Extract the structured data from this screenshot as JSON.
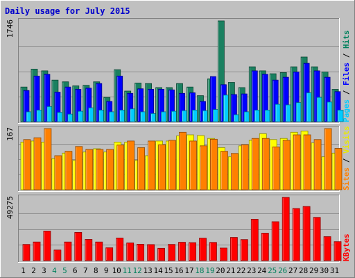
{
  "chart_data": {
    "type": "bar",
    "title": "Daily usage for July 2015",
    "categories": [
      "1",
      "2",
      "3",
      "4",
      "5",
      "6",
      "7",
      "8",
      "9",
      "10",
      "11",
      "12",
      "13",
      "14",
      "15",
      "16",
      "17",
      "18",
      "19",
      "20",
      "21",
      "22",
      "23",
      "24",
      "25",
      "26",
      "27",
      "28",
      "29",
      "30",
      "31"
    ],
    "weekend_days": [
      "4",
      "5",
      "11",
      "12",
      "18",
      "19",
      "25",
      "26"
    ],
    "grid": true,
    "panels": [
      {
        "id": "hits-files-pages",
        "ymax": 1746,
        "ymax_label": "1746",
        "axis_label": [
          "Pages",
          " / ",
          "Files",
          " / ",
          "Hits"
        ],
        "axis_label_colors": [
          "#00ccff",
          "#000000",
          "#0000ff",
          "#000000",
          "#00805c"
        ],
        "series": [
          {
            "name": "Hits",
            "color": "#1a8060",
            "values": [
              600,
              910,
              880,
              720,
              690,
              620,
              630,
              690,
              420,
              900,
              530,
              670,
              660,
              590,
              590,
              660,
              600,
              450,
              740,
              1746,
              680,
              590,
              950,
              880,
              830,
              850,
              950,
              1120,
              950,
              860,
              560
            ]
          },
          {
            "name": "Files",
            "color": "#0000ff",
            "values": [
              540,
              790,
              820,
              510,
              600,
              560,
              580,
              660,
              350,
              790,
              490,
              570,
              560,
              560,
              550,
              490,
              500,
              350,
              780,
              640,
              470,
              480,
              880,
              820,
              720,
              770,
              860,
              1010,
              880,
              770,
              520
            ]
          },
          {
            "name": "Pages",
            "color": "#00ccff",
            "values": [
              170,
              200,
              260,
              160,
              130,
              180,
              240,
              200,
              170,
              200,
              220,
              170,
              140,
              170,
              180,
              190,
              200,
              190,
              210,
              460,
              120,
              170,
              200,
              200,
              300,
              290,
              330,
              500,
              420,
              340,
              200
            ]
          }
        ]
      },
      {
        "id": "visits-sites",
        "ymax": 167,
        "ymax_label": "167",
        "axis_label": [
          "Sites",
          " / ",
          "Visits"
        ],
        "axis_label_colors": [
          "#ff8000",
          "#000000",
          "#e8e800"
        ],
        "series": [
          {
            "name": "Visits",
            "color": "#ffff00",
            "values": [
              130,
              133,
              130,
              85,
              100,
              80,
              103,
              112,
              103,
              130,
              130,
              80,
              93,
              133,
              133,
              147,
              150,
              148,
              140,
              115,
              90,
              120,
              135,
              153,
              137,
              140,
              157,
              160,
              128,
              90,
              100
            ]
          },
          {
            "name": "Sites",
            "color": "#ff8000",
            "values": [
              137,
              142,
              167,
              93,
              105,
              118,
              110,
              110,
              110,
              122,
              133,
              115,
              133,
              123,
              135,
              157,
              133,
              120,
              138,
              105,
              99,
              123,
              140,
              140,
              117,
              135,
              150,
              150,
              137,
              167,
              113
            ]
          }
        ]
      },
      {
        "id": "kbytes",
        "ymax": 49275,
        "ymax_label": "49275",
        "axis_label": [
          "KBytes"
        ],
        "axis_label_colors": [
          "#ff0000"
        ],
        "series": [
          {
            "name": "KBytes",
            "color": "#ff0000",
            "values": [
              12600,
              14500,
              23000,
              8300,
              14500,
              22000,
              16500,
              14500,
              10000,
              17600,
              13800,
              12800,
              12500,
              9600,
              12600,
              14300,
              14000,
              17500,
              14200,
              9800,
              18100,
              16400,
              32200,
              21400,
              30300,
              49275,
              40600,
              42200,
              33700,
              18700,
              14800
            ]
          }
        ]
      }
    ]
  }
}
